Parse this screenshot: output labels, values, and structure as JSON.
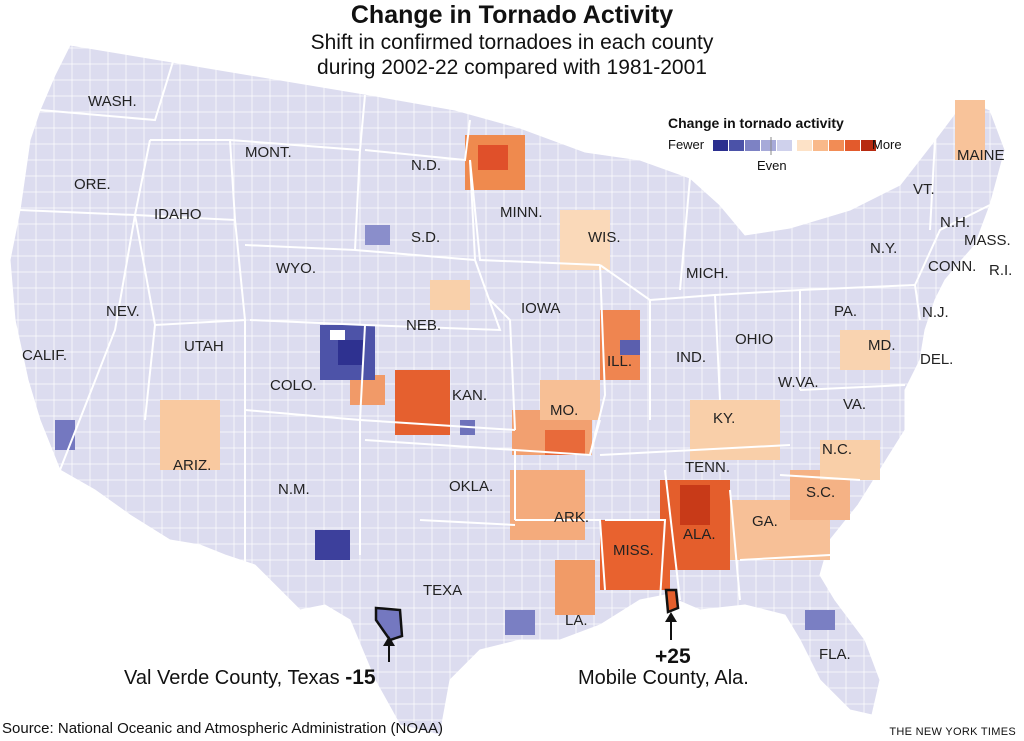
{
  "title": "Change in Tornado Activity",
  "subtitle_line1": "Shift in confirmed tornadoes in each county",
  "subtitle_line2": "during 2002-22 compared with 1981-2001",
  "legend": {
    "title": "Change in tornado activity",
    "fewer": "Fewer",
    "even": "Even",
    "more": "More",
    "colors": [
      "#2b2f8f",
      "#4b52a8",
      "#7d82c4",
      "#a7aad9",
      "#cfd1ec",
      "#fde2c7",
      "#f9b98a",
      "#f28c55",
      "#e35a2c",
      "#b72a10"
    ]
  },
  "states": [
    "WASH.",
    "ORE.",
    "CALIF.",
    "IDAHO",
    "NEV.",
    "MONT.",
    "WYO.",
    "UTAH",
    "ARIZ.",
    "COLO.",
    "N.M.",
    "N.D.",
    "S.D.",
    "NEB.",
    "KAN.",
    "OKLA.",
    "TEXA",
    "MINN.",
    "IOWA",
    "MO.",
    "ARK.",
    "LA.",
    "WIS.",
    "ILL.",
    "MICH.",
    "IND.",
    "OHIO",
    "KY.",
    "TENN.",
    "MISS.",
    "ALA.",
    "GA.",
    "FLA.",
    "S.C.",
    "N.C.",
    "VA.",
    "W.VA.",
    "PA.",
    "N.Y.",
    "MAINE",
    "VT.",
    "N.H.",
    "MASS.",
    "CONN.",
    "R.I.",
    "N.J.",
    "MD.",
    "DEL."
  ],
  "callouts": {
    "val_verde": {
      "label": "Val Verde County, Texas",
      "value": "-15"
    },
    "mobile": {
      "value": "+25",
      "label": "Mobile County, Ala."
    }
  },
  "source": "Source: National Oceanic and Atmospheric Administration (NOAA)",
  "credit": "THE NEW YORK TIMES"
}
